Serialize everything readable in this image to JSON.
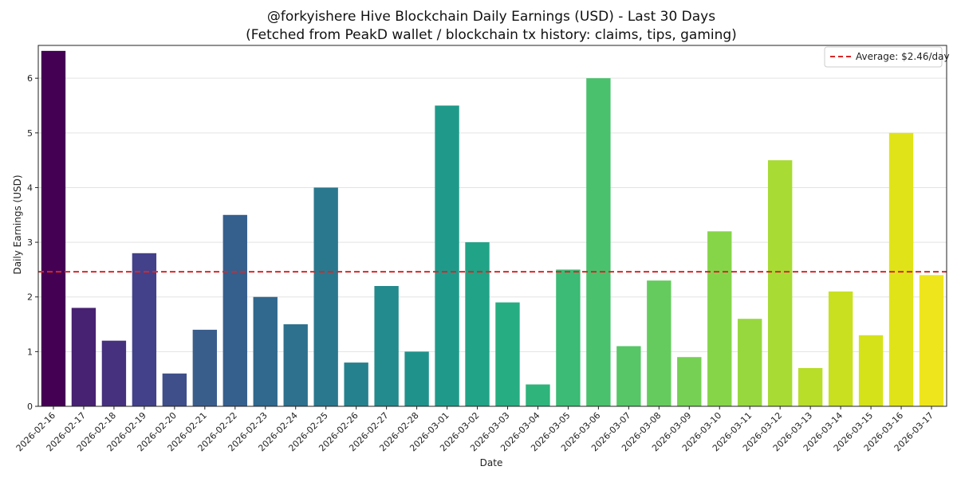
{
  "chart_data": {
    "type": "bar",
    "title": "@forkyishere Hive Blockchain Daily Earnings (USD) - Last 30 Days",
    "subtitle": "(Fetched from PeakD wallet / blockchain tx history: claims, tips, gaming)",
    "xlabel": "Date",
    "ylabel": "Daily Earnings (USD)",
    "ylim": [
      0,
      6.6
    ],
    "yticks": [
      0,
      1,
      2,
      3,
      4,
      5,
      6
    ],
    "grid": "horizontal",
    "categories": [
      "2026-02-16",
      "2026-02-17",
      "2026-02-18",
      "2026-02-19",
      "2026-02-20",
      "2026-02-21",
      "2026-02-22",
      "2026-02-23",
      "2026-02-24",
      "2026-02-25",
      "2026-02-26",
      "2026-02-27",
      "2026-02-28",
      "2026-03-01",
      "2026-03-02",
      "2026-03-03",
      "2026-03-04",
      "2026-03-05",
      "2026-03-06",
      "2026-03-07",
      "2026-03-08",
      "2026-03-09",
      "2026-03-10",
      "2026-03-11",
      "2026-03-12",
      "2026-03-13",
      "2026-03-14",
      "2026-03-15",
      "2026-03-16",
      "2026-03-17"
    ],
    "values": [
      6.5,
      1.8,
      1.2,
      2.8,
      0.6,
      1.4,
      3.5,
      2.0,
      1.5,
      4.0,
      0.8,
      2.2,
      1.0,
      5.5,
      3.0,
      1.9,
      0.4,
      2.5,
      6.0,
      1.1,
      2.3,
      0.9,
      3.2,
      1.6,
      4.5,
      0.7,
      2.1,
      1.3,
      5.0,
      2.4
    ],
    "colors": [
      "#440154",
      "#472172",
      "#46317e",
      "#43418a",
      "#3e4f8a",
      "#3a5e8c",
      "#355f8d",
      "#31688e",
      "#2d718e",
      "#2a788e",
      "#26818e",
      "#238a8d",
      "#1f928c",
      "#1f9a8a",
      "#20a386",
      "#26ad81",
      "#2fb47c",
      "#3bbb75",
      "#4ac16d",
      "#56c667",
      "#65cb5e",
      "#75d054",
      "#86d549",
      "#97d83e",
      "#a8db34",
      "#b8de29",
      "#c8e020",
      "#d5e21a",
      "#e0e318",
      "#eee51c"
    ],
    "average": {
      "value": 2.46,
      "label": "Average: $2.46/day",
      "color": "#d62728"
    },
    "legend_position": "top-right"
  }
}
